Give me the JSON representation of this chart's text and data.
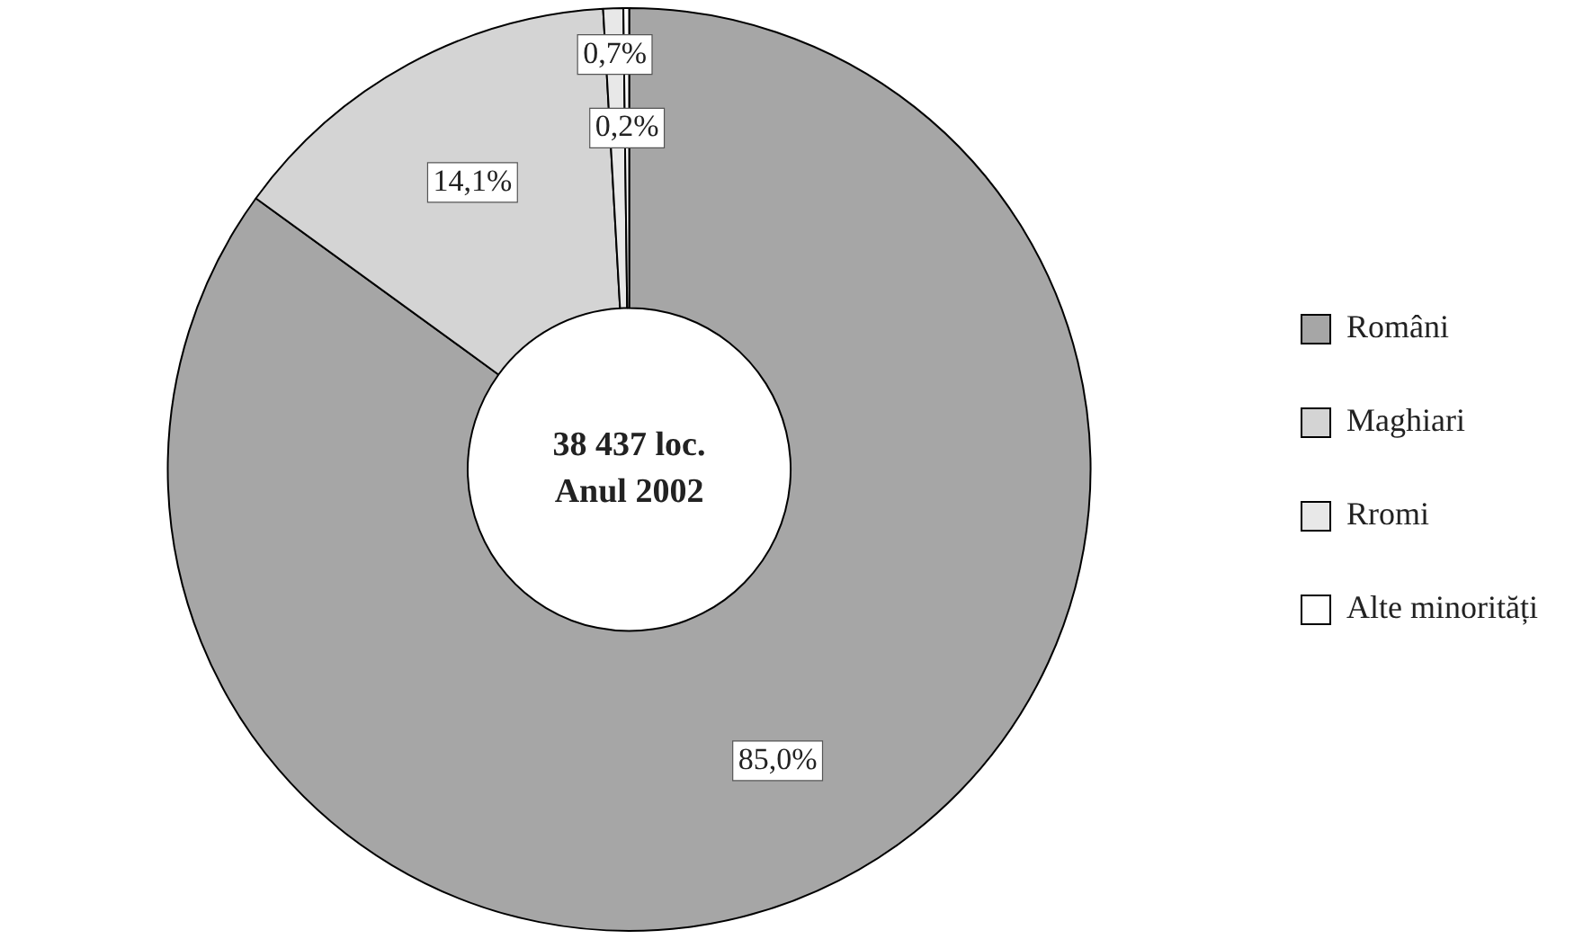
{
  "chart_data": {
    "type": "donut",
    "categories": [
      "Români",
      "Maghiari",
      "Rromi",
      "Alte minorități"
    ],
    "values": [
      85.0,
      14.1,
      0.7,
      0.2
    ],
    "colors": [
      "#a6a6a6",
      "#d4d4d4",
      "#e8e8e8",
      "#ffffff"
    ],
    "value_labels": [
      "85,0%",
      "14,1%",
      "0,7%",
      "0,2%"
    ],
    "annotations": [
      "38 437 loc.",
      "Anul 2002"
    ],
    "legend": "right"
  }
}
